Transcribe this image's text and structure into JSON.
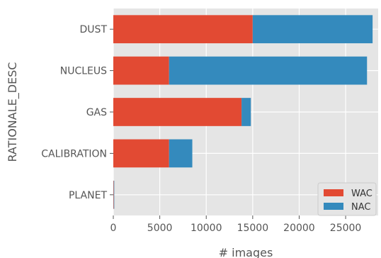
{
  "chart_data": {
    "type": "bar",
    "orientation": "horizontal",
    "stacked": true,
    "categories": [
      "PLANET",
      "CALIBRATION",
      "GAS",
      "NUCLEUS",
      "DUST"
    ],
    "series": [
      {
        "name": "WAC",
        "values": [
          50,
          6000,
          13800,
          6000,
          15000
        ],
        "color": "#e24a33"
      },
      {
        "name": "NAC",
        "values": [
          50,
          2500,
          1000,
          21300,
          12900
        ],
        "color": "#348abd"
      }
    ],
    "xlabel": "# images",
    "ylabel": "RATIONALE_DESC",
    "xlim": [
      0,
      28500
    ],
    "xticks": [
      0,
      5000,
      10000,
      15000,
      20000,
      25000
    ],
    "grid": true,
    "legend": "lower-right",
    "plot_background": "#e5e5e5"
  }
}
